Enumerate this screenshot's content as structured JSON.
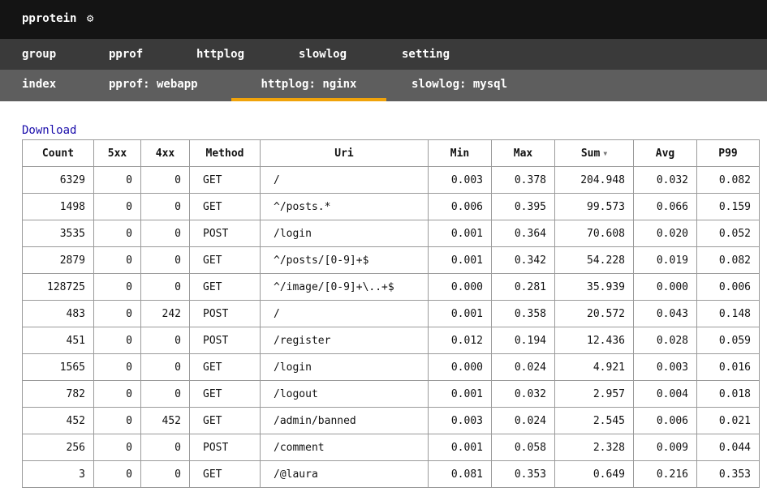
{
  "header": {
    "brand": "pprotein",
    "gear_icon": "⚙"
  },
  "nav_main": [
    "group",
    "pprof",
    "httplog",
    "slowlog",
    "setting"
  ],
  "nav_tabs": [
    "index",
    "pprof: webapp",
    "httplog: nginx",
    "slowlog: mysql"
  ],
  "active_tab": "httplog: nginx",
  "download_label": "Download",
  "table": {
    "headers": [
      "Count",
      "5xx",
      "4xx",
      "Method",
      "Uri",
      "Min",
      "Max",
      "Sum",
      "Avg",
      "P99"
    ],
    "sorted_by": "Sum",
    "sort_indicator": "▼",
    "rows": [
      [
        "6329",
        "0",
        "0",
        "GET",
        "/",
        "0.003",
        "0.378",
        "204.948",
        "0.032",
        "0.082"
      ],
      [
        "1498",
        "0",
        "0",
        "GET",
        "^/posts.*",
        "0.006",
        "0.395",
        "99.573",
        "0.066",
        "0.159"
      ],
      [
        "3535",
        "0",
        "0",
        "POST",
        "/login",
        "0.001",
        "0.364",
        "70.608",
        "0.020",
        "0.052"
      ],
      [
        "2879",
        "0",
        "0",
        "GET",
        "^/posts/[0-9]+$",
        "0.001",
        "0.342",
        "54.228",
        "0.019",
        "0.082"
      ],
      [
        "128725",
        "0",
        "0",
        "GET",
        "^/image/[0-9]+\\..+$",
        "0.000",
        "0.281",
        "35.939",
        "0.000",
        "0.006"
      ],
      [
        "483",
        "0",
        "242",
        "POST",
        "/",
        "0.001",
        "0.358",
        "20.572",
        "0.043",
        "0.148"
      ],
      [
        "451",
        "0",
        "0",
        "POST",
        "/register",
        "0.012",
        "0.194",
        "12.436",
        "0.028",
        "0.059"
      ],
      [
        "1565",
        "0",
        "0",
        "GET",
        "/login",
        "0.000",
        "0.024",
        "4.921",
        "0.003",
        "0.016"
      ],
      [
        "782",
        "0",
        "0",
        "GET",
        "/logout",
        "0.001",
        "0.032",
        "2.957",
        "0.004",
        "0.018"
      ],
      [
        "452",
        "0",
        "452",
        "GET",
        "/admin/banned",
        "0.003",
        "0.024",
        "2.545",
        "0.006",
        "0.021"
      ],
      [
        "256",
        "0",
        "0",
        "POST",
        "/comment",
        "0.001",
        "0.058",
        "2.328",
        "0.009",
        "0.044"
      ],
      [
        "3",
        "0",
        "0",
        "GET",
        "/@laura",
        "0.081",
        "0.353",
        "0.649",
        "0.216",
        "0.353"
      ]
    ]
  },
  "colors": {
    "topbar": "#141414",
    "nav_main": "#3a3a3a",
    "nav_tabs": "#5e5e5e",
    "active_underline": "#f0a30a",
    "link": "#1a0dab"
  }
}
